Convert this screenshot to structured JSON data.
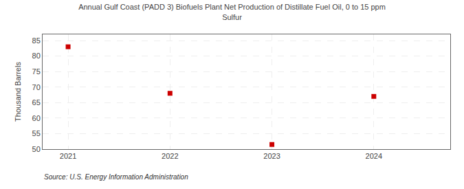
{
  "chart_data": {
    "type": "scatter",
    "title": "Annual Gulf Coast (PADD 3) Biofuels Plant Net Production of Distillate Fuel Oil, 0 to 15 ppm\nSulfur",
    "ylabel": "Thousand Barrels",
    "source": "Source: U.S. Energy Information Administration",
    "x": [
      2021,
      2022,
      2023,
      2024
    ],
    "values": [
      83,
      68,
      51.5,
      67
    ],
    "xlim": [
      2020.75,
      2024.75
    ],
    "xticks": [
      2021,
      2022,
      2023,
      2024
    ],
    "ylim": [
      50,
      87
    ],
    "yticks": [
      50,
      55,
      60,
      65,
      70,
      75,
      80,
      85
    ],
    "color": "#cc0000",
    "marker": "square",
    "grid": true
  }
}
